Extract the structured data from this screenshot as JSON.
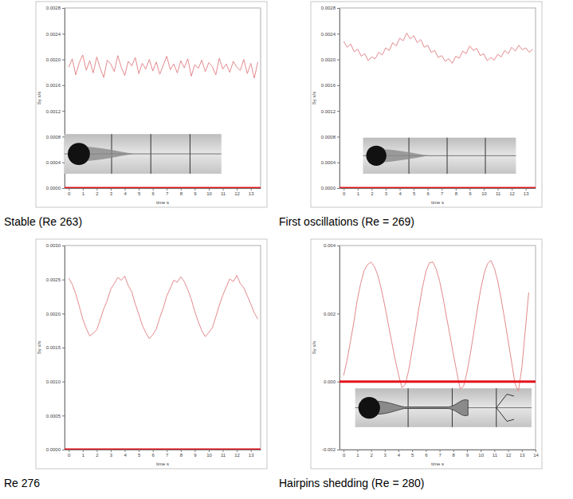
{
  "chart_data": [
    {
      "type": "line",
      "title": "Stable (Re 263)",
      "x_label": "time s",
      "y_label": "Sy x/s",
      "xlim": [
        -0.3,
        13.7
      ],
      "xticks": [
        0,
        1,
        2,
        3,
        4,
        5,
        6,
        7,
        8,
        9,
        10,
        11,
        12,
        13
      ],
      "ylim": [
        0,
        0.0028
      ],
      "yticks": [
        {
          "value": 0,
          "label": "0.0000"
        },
        0.0004,
        0.0008,
        0.0012,
        0.0016,
        {
          "value": 0.002,
          "label": "0.0020"
        },
        0.0024,
        0.0028
      ],
      "series": [
        {
          "color": "#e48a8e",
          "x": [
            0,
            0.25,
            0.5,
            0.75,
            1,
            1.25,
            1.5,
            1.75,
            2,
            2.25,
            2.5,
            2.75,
            3,
            3.25,
            3.5,
            3.75,
            4,
            4.25,
            4.5,
            4.75,
            5,
            5.25,
            5.5,
            5.75,
            6,
            6.25,
            6.5,
            6.75,
            7,
            7.25,
            7.5,
            7.75,
            8,
            8.25,
            8.5,
            8.75,
            9,
            9.25,
            9.5,
            9.75,
            10,
            10.25,
            10.5,
            10.75,
            11,
            11.25,
            11.5,
            11.75,
            12,
            12.25,
            12.5,
            12.75,
            13,
            13.25,
            13.5
          ],
          "values": [
            0.00188,
            0.00201,
            0.00176,
            0.00195,
            0.00207,
            0.00183,
            0.00198,
            0.00179,
            0.00204,
            0.00186,
            0.00172,
            0.00199,
            0.00193,
            0.00181,
            0.00206,
            0.00188,
            0.00175,
            0.00197,
            0.0019,
            0.00203,
            0.00178,
            0.00194,
            0.00185,
            0.002,
            0.00182,
            0.00196,
            0.00177,
            0.00191,
            0.00205,
            0.00184,
            0.00193,
            0.00179,
            0.00198,
            0.00187,
            0.00201,
            0.00174,
            0.00192,
            0.00186,
            0.00199,
            0.00181,
            0.00195,
            0.00189,
            0.00176,
            0.00202,
            0.00185,
            0.00193,
            0.0018,
            0.00197,
            0.00188,
            0.00183,
            0.002,
            0.00178,
            0.00194,
            0.00171,
            0.00196
          ]
        },
        {
          "color": "#e3141c",
          "x": [
            -0.3,
            13.7
          ],
          "values": [
            0,
            0
          ]
        }
      ]
    },
    {
      "type": "line",
      "title": "First oscillations (Re = 269)",
      "x_label": "time s",
      "y_label": "Sy x/s",
      "xlim": [
        -0.3,
        13.7
      ],
      "xticks": [
        0,
        1,
        2,
        3,
        4,
        5,
        6,
        7,
        8,
        9,
        10,
        11,
        12,
        13
      ],
      "ylim": [
        0,
        0.0028
      ],
      "yticks": [
        {
          "value": 0,
          "label": "0.0000"
        },
        0.0004,
        0.0008,
        0.0012,
        0.0016,
        {
          "value": 0.002,
          "label": "0.0020"
        },
        0.0024,
        0.0028
      ],
      "series": [
        {
          "color": "#e48a8e",
          "x": [
            0,
            0.25,
            0.5,
            0.75,
            1,
            1.25,
            1.5,
            1.75,
            2,
            2.25,
            2.5,
            2.75,
            3,
            3.25,
            3.5,
            3.75,
            4,
            4.25,
            4.5,
            4.75,
            5,
            5.25,
            5.5,
            5.75,
            6,
            6.25,
            6.5,
            6.75,
            7,
            7.25,
            7.5,
            7.75,
            8,
            8.25,
            8.5,
            8.75,
            9,
            9.25,
            9.5,
            9.75,
            10,
            10.25,
            10.5,
            10.75,
            11,
            11.25,
            11.5,
            11.75,
            12,
            12.25,
            12.5,
            12.75,
            13,
            13.25,
            13.5
          ],
          "values": [
            0.00228,
            0.00219,
            0.00224,
            0.00212,
            0.00216,
            0.00205,
            0.00209,
            0.00198,
            0.00204,
            0.00201,
            0.00211,
            0.00207,
            0.00218,
            0.00214,
            0.00226,
            0.00221,
            0.00233,
            0.00229,
            0.00241,
            0.00232,
            0.00237,
            0.00226,
            0.00231,
            0.00219,
            0.00222,
            0.00211,
            0.00214,
            0.00203,
            0.00206,
            0.00197,
            0.00201,
            0.00194,
            0.00205,
            0.00202,
            0.00213,
            0.00209,
            0.00221,
            0.00214,
            0.00217,
            0.00206,
            0.00209,
            0.00198,
            0.00203,
            0.00199,
            0.00208,
            0.00204,
            0.00214,
            0.00209,
            0.00219,
            0.00213,
            0.00222,
            0.00215,
            0.00218,
            0.00211,
            0.00216
          ]
        },
        {
          "color": "#e3141c",
          "x": [
            -0.3,
            13.7
          ],
          "values": [
            0,
            0
          ]
        }
      ]
    },
    {
      "type": "line",
      "title": "Re 276",
      "x_label": "time s",
      "y_label": "Sy x/s",
      "xlim": [
        -0.3,
        13.7
      ],
      "xticks": [
        0,
        1,
        2,
        3,
        4,
        5,
        6,
        7,
        8,
        9,
        10,
        11,
        12,
        13
      ],
      "ylim": [
        0,
        0.003
      ],
      "yticks": [
        {
          "value": 0,
          "label": "0.0000"
        },
        0.0005,
        {
          "value": 0.001,
          "label": "0.0010"
        },
        0.0015,
        {
          "value": 0.002,
          "label": "0.0020"
        },
        0.0025,
        {
          "value": 0.003,
          "label": "0.0030"
        }
      ],
      "series": [
        {
          "color": "#e48a8e",
          "x": [
            0,
            0.25,
            0.5,
            0.75,
            1,
            1.25,
            1.5,
            1.75,
            2,
            2.25,
            2.5,
            2.75,
            3,
            3.25,
            3.5,
            3.75,
            4,
            4.25,
            4.5,
            4.75,
            5,
            5.25,
            5.5,
            5.75,
            6,
            6.25,
            6.5,
            6.75,
            7,
            7.25,
            7.5,
            7.75,
            8,
            8.25,
            8.5,
            8.75,
            9,
            9.25,
            9.5,
            9.75,
            10,
            10.25,
            10.5,
            10.75,
            11,
            11.25,
            11.5,
            11.75,
            12,
            12.25,
            12.5,
            12.75,
            13,
            13.25,
            13.5
          ],
          "values": [
            0.00252,
            0.00243,
            0.00229,
            0.00211,
            0.00192,
            0.00178,
            0.00167,
            0.00171,
            0.00176,
            0.00191,
            0.00207,
            0.00219,
            0.00236,
            0.00244,
            0.00253,
            0.00249,
            0.00255,
            0.00241,
            0.00232,
            0.00214,
            0.00199,
            0.00183,
            0.00172,
            0.00163,
            0.00169,
            0.00177,
            0.00194,
            0.00208,
            0.00226,
            0.00237,
            0.00249,
            0.00246,
            0.00254,
            0.00247,
            0.00235,
            0.00221,
            0.00203,
            0.00188,
            0.00175,
            0.00166,
            0.00172,
            0.00179,
            0.00195,
            0.00212,
            0.00227,
            0.00239,
            0.00251,
            0.00247,
            0.00256,
            0.00244,
            0.00238,
            0.00226,
            0.00214,
            0.00201,
            0.00192
          ]
        },
        {
          "color": "#e3141c",
          "x": [
            -0.3,
            13.7
          ],
          "values": [
            0,
            0
          ]
        }
      ]
    },
    {
      "type": "line",
      "title": "Hairpins shedding (Re = 280)",
      "x_label": "time s",
      "y_label": "Sy x/s",
      "xlim": [
        -0.3,
        14
      ],
      "xticks": [
        0,
        1,
        2,
        3,
        4,
        5,
        6,
        7,
        8,
        9,
        10,
        11,
        12,
        13,
        14
      ],
      "ylim": [
        -0.002,
        0.004
      ],
      "yticks": [
        -0.002,
        {
          "value": 0,
          "label": "0.000"
        },
        0.002,
        0.004
      ],
      "series": [
        {
          "color": "#e48a8e",
          "x": [
            0,
            0.25,
            0.5,
            0.75,
            1,
            1.25,
            1.5,
            1.75,
            2,
            2.25,
            2.5,
            2.75,
            3,
            3.25,
            3.5,
            3.75,
            4,
            4.25,
            4.5,
            4.75,
            5,
            5.25,
            5.5,
            5.75,
            6,
            6.25,
            6.5,
            6.75,
            7,
            7.25,
            7.5,
            7.75,
            8,
            8.25,
            8.5,
            8.75,
            9,
            9.25,
            9.5,
            9.75,
            10,
            10.25,
            10.5,
            10.75,
            11,
            11.25,
            11.5,
            11.75,
            12,
            12.25,
            12.5,
            12.75,
            13,
            13.25,
            13.5
          ],
          "values": [
            0.00018,
            0.00062,
            0.00118,
            0.00176,
            0.00241,
            0.00289,
            0.00327,
            0.00344,
            0.00351,
            0.00338,
            0.00312,
            0.00271,
            0.00224,
            0.00171,
            0.00118,
            0.00067,
            0.00021,
            -0.00018,
            -9e-05,
            0.00034,
            0.00092,
            0.00154,
            0.00218,
            0.00276,
            0.00323,
            0.00349,
            0.00352,
            0.00331,
            0.00296,
            0.00247,
            0.00191,
            0.00138,
            0.00081,
            0.00029,
            -0.00021,
            -0.00014,
            0.00027,
            0.00083,
            0.00146,
            0.00212,
            0.00271,
            0.00318,
            0.00347,
            0.00356,
            0.00333,
            0.00294,
            0.00241,
            0.00183,
            0.00121,
            0.00058,
            -6e-05,
            -0.00028,
            0.00041,
            0.00149,
            0.00262
          ]
        },
        {
          "color": "#e3141c",
          "x": [
            -0.3,
            14
          ],
          "values": [
            0,
            0
          ]
        }
      ]
    }
  ]
}
